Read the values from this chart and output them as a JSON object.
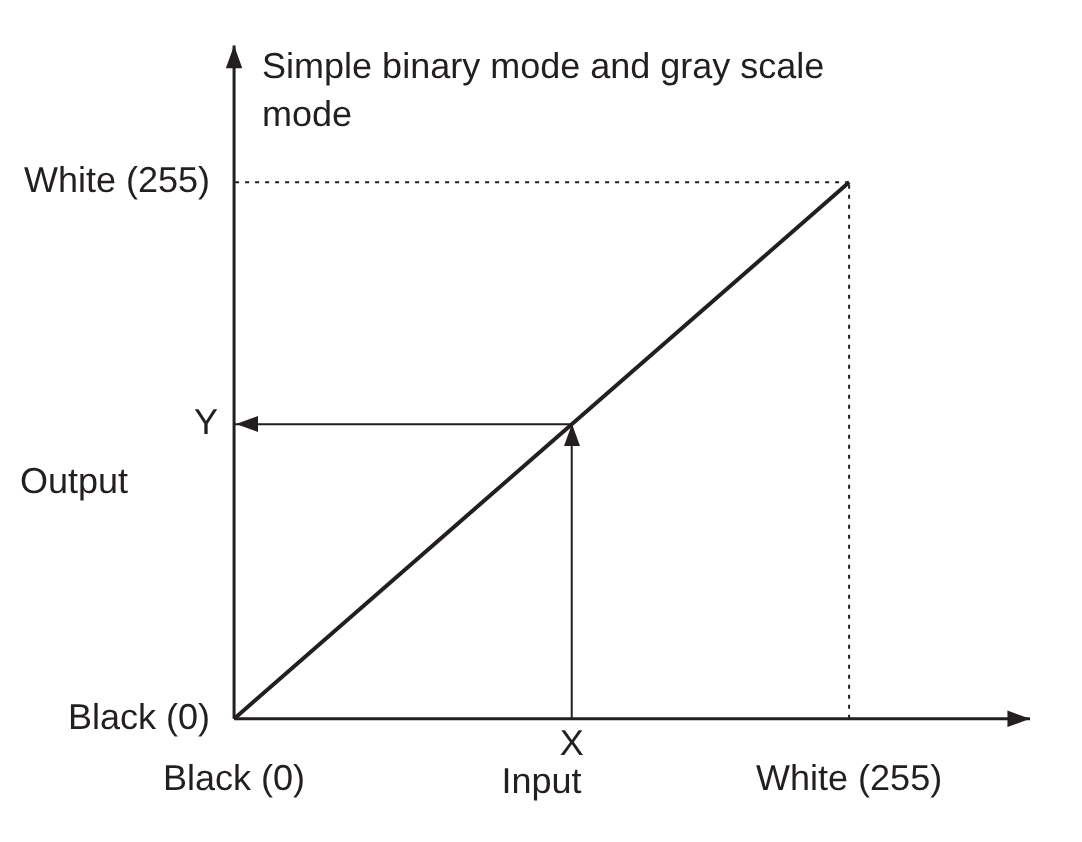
{
  "chart_data": {
    "type": "line",
    "title": "Simple binary mode and gray scale mode",
    "xlabel": "Input",
    "ylabel": "Output",
    "x": [
      0,
      255
    ],
    "series": [
      {
        "color": "#231f20",
        "values": [
          0,
          255
        ]
      }
    ],
    "xlim": [
      0,
      330
    ],
    "ylim": [
      0,
      320
    ],
    "xticks": [
      {
        "value": 0,
        "label": "Black (0)"
      },
      {
        "value": 255,
        "label": "White (255)"
      }
    ],
    "yticks": [
      {
        "value": 0,
        "label": "Black (0)"
      },
      {
        "value": 255,
        "label": "White (255)"
      }
    ],
    "ref_lines": [
      {
        "axis": "x",
        "value": 140,
        "label": "X",
        "line_style": "solid"
      },
      {
        "axis": "y",
        "value": 140,
        "label": "Y",
        "line_style": "solid"
      },
      {
        "axis": "x",
        "value": 255,
        "line_style": "dotted"
      },
      {
        "axis": "y",
        "value": 255,
        "line_style": "dotted"
      }
    ],
    "grid": false,
    "legend": false,
    "marker": "none",
    "line_style": "solid"
  }
}
